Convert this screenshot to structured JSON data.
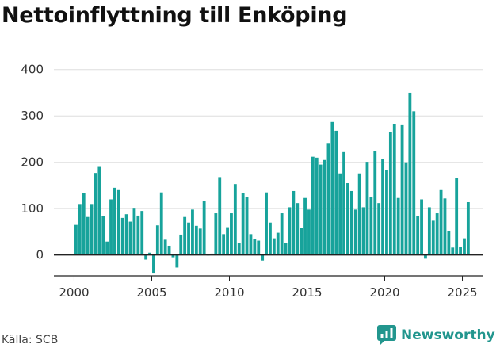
{
  "title": "Nettoinflyttning till Enköping",
  "source": "Källa: SCB",
  "brand": {
    "name": "Newsworthy",
    "icon": "newsworthy-logo-icon"
  },
  "colors": {
    "bar": "#17a39b",
    "grid": "#dddddd",
    "axis": "#222222",
    "brand": "#22968e"
  },
  "chart_data": {
    "type": "bar",
    "title": "Nettoinflyttning till Enköping",
    "xlabel": "",
    "ylabel": "",
    "ylim": [
      -45,
      420
    ],
    "xlim": [
      1998.7,
      2026.3
    ],
    "yticks": [
      0,
      100,
      200,
      300,
      400
    ],
    "xticks": [
      2000,
      2005,
      2010,
      2015,
      2020,
      2025
    ],
    "grid": true,
    "legend": "none",
    "frequency": "quarterly",
    "start_period": "2000-Q1",
    "values": [
      65,
      110,
      133,
      82,
      110,
      177,
      190,
      84,
      29,
      120,
      145,
      140,
      80,
      88,
      72,
      100,
      85,
      95,
      -10,
      5,
      -40,
      64,
      135,
      33,
      20,
      -5,
      -27,
      44,
      82,
      70,
      98,
      63,
      57,
      117,
      0,
      3,
      90,
      168,
      45,
      60,
      90,
      153,
      26,
      133,
      125,
      45,
      35,
      31,
      -12,
      135,
      70,
      36,
      48,
      90,
      26,
      103,
      138,
      112,
      58,
      123,
      98,
      212,
      210,
      195,
      205,
      240,
      287,
      268,
      176,
      222,
      155,
      138,
      98,
      176,
      103,
      201,
      125,
      225,
      112,
      207,
      183,
      265,
      283,
      123,
      280,
      200,
      350,
      310,
      84,
      120,
      -8,
      103,
      74,
      90,
      140,
      122,
      52,
      16,
      166,
      18,
      36,
      114
    ]
  }
}
